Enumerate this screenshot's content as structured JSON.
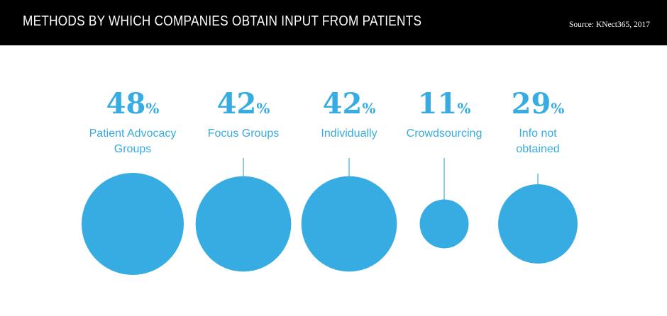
{
  "header": {
    "title": "METHODS BY WHICH COMPANIES OBTAIN INPUT FROM PATIENTS",
    "source": "Source: KNect365, 2017"
  },
  "colors": {
    "accent": "#36ace2",
    "header_bg": "#000000",
    "header_text": "#ffffff"
  },
  "chart_data": {
    "type": "bubble",
    "unit": "%",
    "categories": [
      "Patient Advocacy Groups",
      "Focus Groups",
      "Individually",
      "Crowdsourcing",
      "Info not obtained"
    ],
    "values": [
      48,
      42,
      42,
      11,
      29
    ],
    "label_lines": [
      [
        "Patient Advocacy",
        "Groups"
      ],
      [
        "Focus Groups"
      ],
      [
        "Individually"
      ],
      [
        "Crowdsourcing"
      ],
      [
        "Info not",
        "obtained"
      ]
    ]
  }
}
